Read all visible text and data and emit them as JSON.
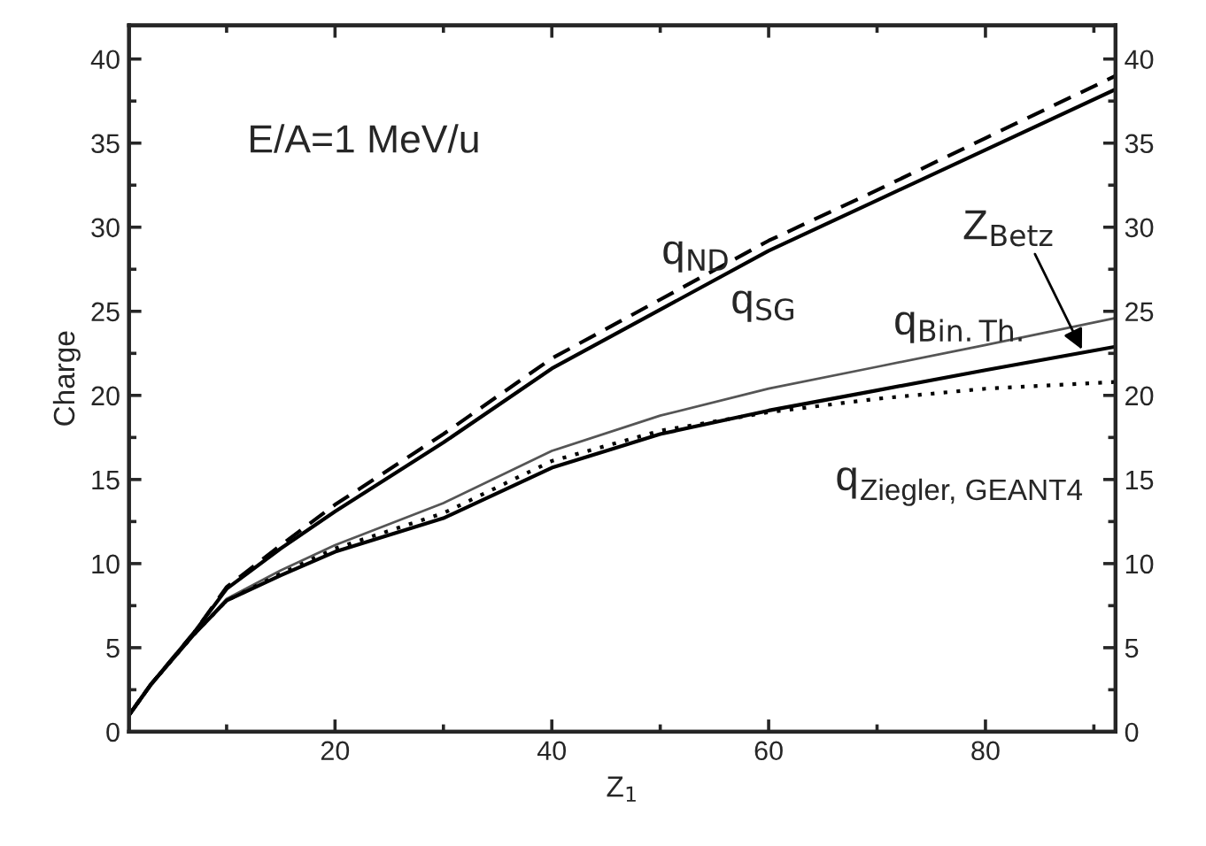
{
  "chart_data": {
    "type": "line",
    "xlabel": "Z$_{1}$",
    "ylabel": "Charge",
    "x": [
      1,
      3,
      7,
      10,
      15,
      20,
      30,
      40,
      50,
      60,
      70,
      80,
      92
    ],
    "series": [
      {
        "color": "#000000",
        "line_style": "dashed",
        "values": [
          1,
          2.8,
          5.9,
          8.6,
          11.1,
          13.5,
          17.7,
          22.2,
          25.7,
          29.2,
          32.2,
          35.3,
          39.0
        ]
      },
      {
        "color": "#000000",
        "line_style": "solid",
        "values": [
          1,
          2.8,
          5.9,
          8.5,
          10.9,
          13.1,
          17.2,
          21.6,
          25.1,
          28.6,
          31.6,
          34.6,
          38.2
        ]
      },
      {
        "color": "#555555",
        "line_style": "solid",
        "values": [
          1,
          2.8,
          5.8,
          7.9,
          9.6,
          11.1,
          13.6,
          16.7,
          18.8,
          20.4,
          21.7,
          23.0,
          24.6
        ]
      },
      {
        "color": "#000000",
        "line_style": "solid",
        "values": [
          1,
          2.8,
          5.8,
          7.8,
          9.3,
          10.7,
          12.7,
          15.7,
          17.7,
          19.1,
          20.3,
          21.5,
          22.9
        ]
      },
      {
        "color": "#000000",
        "line_style": "dotted",
        "values": [
          1,
          2.8,
          5.8,
          7.8,
          9.4,
          10.9,
          13.0,
          16.1,
          17.9,
          19.0,
          19.8,
          20.4,
          20.8
        ]
      }
    ],
    "xlim": [
      1,
      92
    ],
    "ylim": [
      0,
      42
    ],
    "xticks": [
      20,
      40,
      60,
      80
    ],
    "yticks": [
      0,
      5,
      10,
      15,
      20,
      25,
      30,
      35,
      40
    ],
    "y2lim": [
      0,
      42
    ],
    "y2ticks": [
      0,
      5,
      10,
      15,
      20,
      25,
      30,
      35,
      40
    ],
    "grid": false,
    "legend": false,
    "marker": "none",
    "annotations": [
      "E/A=1 MeV/u",
      "q$_{ND}$",
      "q$_{SG}$",
      "q$_{Bin.Th.}$",
      {
        "text": "Z$_{Betz}$",
        "x": 89,
        "y": 22.6
      },
      "q$_{Ziegler, GEANT4}$"
    ]
  }
}
